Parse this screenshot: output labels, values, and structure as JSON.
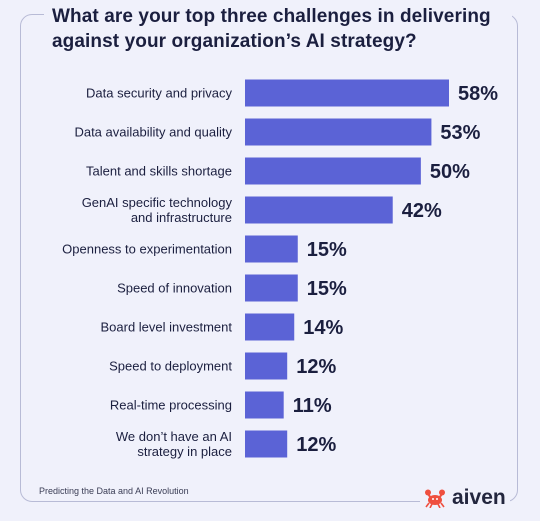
{
  "title": "What are your top three challenges in delivering against your organization’s AI strategy?",
  "footer": "Predicting the Data and AI Revolution",
  "brand": "aiven",
  "colors": {
    "bar": "#5b63d6",
    "text": "#1b1f3f",
    "background": "#f0f1fb",
    "border": "#b8bbd6",
    "logo": "#ef4f3f"
  },
  "logo_icon": "crab-icon",
  "chart_data": {
    "type": "bar",
    "orientation": "horizontal",
    "unit": "%",
    "categories": [
      [
        "Data security and privacy"
      ],
      [
        "Data availability and quality"
      ],
      [
        "Talent and skills shortage"
      ],
      [
        "GenAI specific technology",
        "and infrastructure"
      ],
      [
        "Openness to experimentation"
      ],
      [
        "Speed of innovation"
      ],
      [
        "Board level investment"
      ],
      [
        "Speed to deployment"
      ],
      [
        "Real-time processing"
      ],
      [
        "We don’t have an AI",
        "strategy in place"
      ]
    ],
    "values": [
      58,
      53,
      50,
      42,
      15,
      15,
      14,
      12,
      11,
      12
    ],
    "value_labels": [
      "58%",
      "53%",
      "50%",
      "42%",
      "15%",
      "15%",
      "14%",
      "12%",
      "11%",
      "12%"
    ],
    "xlim": [
      0,
      58
    ],
    "grid": false,
    "legend": "none"
  }
}
